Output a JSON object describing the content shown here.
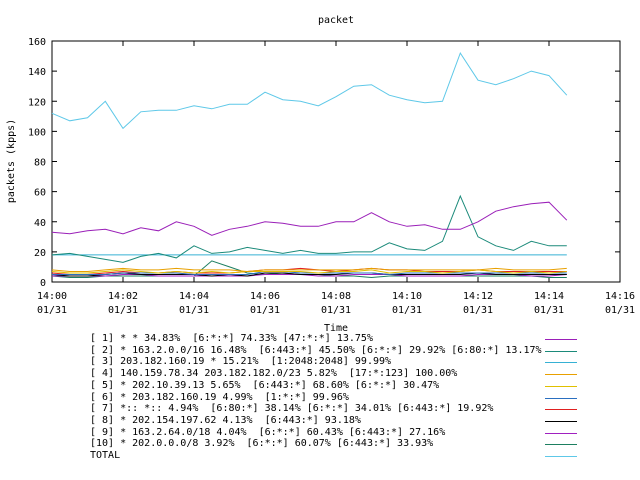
{
  "chart_data": {
    "type": "line",
    "title": "packet",
    "xlabel": "Time",
    "ylabel": "packets (kpps)",
    "ylim": [
      0,
      160
    ],
    "yticks": [
      "0",
      "20",
      "40",
      "60",
      "80",
      "100",
      "120",
      "140",
      "160"
    ],
    "xlim": [
      "14:00",
      "14:16"
    ],
    "xticks": [
      {
        "time": "14:00",
        "date": "01/31"
      },
      {
        "time": "14:02",
        "date": "01/31"
      },
      {
        "time": "14:04",
        "date": "01/31"
      },
      {
        "time": "14:06",
        "date": "01/31"
      },
      {
        "time": "14:08",
        "date": "01/31"
      },
      {
        "time": "14:10",
        "date": "01/31"
      },
      {
        "time": "14:12",
        "date": "01/31"
      },
      {
        "time": "14:14",
        "date": "01/31"
      },
      {
        "time": "14:16",
        "date": "01/31"
      }
    ],
    "x": [
      "14:00:00",
      "14:00:30",
      "14:01:00",
      "14:01:30",
      "14:02:00",
      "14:02:30",
      "14:03:00",
      "14:03:30",
      "14:04:00",
      "14:04:30",
      "14:05:00",
      "14:05:30",
      "14:06:00",
      "14:06:30",
      "14:07:00",
      "14:07:30",
      "14:08:00",
      "14:08:30",
      "14:09:00",
      "14:09:30",
      "14:10:00",
      "14:10:30",
      "14:11:00",
      "14:11:30",
      "14:12:00",
      "14:12:30",
      "14:13:00",
      "14:13:30",
      "14:14:00",
      "14:14:30"
    ],
    "grid": false,
    "legend_position": "bottom",
    "series": [
      {
        "name": "[ 1] * * 34.83%  [6:*:*] 74.33% [47:*:*] 13.75%",
        "color": "#9a1fb8",
        "values": [
          33,
          32,
          34,
          35,
          32,
          36,
          34,
          40,
          37,
          31,
          35,
          37,
          40,
          39,
          37,
          37,
          40,
          40,
          46,
          40,
          37,
          38,
          35,
          35,
          40,
          47,
          50,
          52,
          53,
          41
        ]
      },
      {
        "name": "[ 2] * 163.2.0.0/16 16.48%  [6:443:*] 45.50% [6:*:*] 29.92% [6:80:*] 13.17%",
        "color": "#1b8a7a",
        "values": [
          18,
          19,
          17,
          15,
          13,
          17,
          19,
          16,
          24,
          19,
          20,
          23,
          21,
          19,
          21,
          19,
          19,
          20,
          20,
          26,
          22,
          21,
          27,
          57,
          30,
          24,
          21,
          27,
          24,
          24
        ]
      },
      {
        "name": "[ 3] 203.182.160.19 * 15.21%  [1:2048:2048] 99.99%",
        "color": "#36b1d4",
        "values": [
          18,
          18,
          18,
          18,
          18,
          18,
          18,
          18,
          18,
          18,
          18,
          18,
          18,
          18,
          18,
          18,
          18,
          18,
          18,
          18,
          18,
          18,
          18,
          18,
          18,
          18,
          18,
          18,
          18,
          18
        ]
      },
      {
        "name": "[ 4] 140.159.78.34 203.182.182.0/23 5.82%  [17:*:123] 100.00%",
        "color": "#e8a000",
        "values": [
          8,
          7,
          7,
          8,
          9,
          8,
          8,
          9,
          8,
          8,
          8,
          7,
          8,
          8,
          8,
          8,
          8,
          8,
          9,
          8,
          8,
          8,
          8,
          8,
          8,
          9,
          8,
          8,
          8,
          9
        ]
      },
      {
        "name": "[ 5] * 202.10.39.13 5.65%  [6:443:*] 68.60% [6:*:*] 30.47%",
        "color": "#e0c000",
        "values": [
          7,
          6,
          6,
          7,
          8,
          7,
          6,
          7,
          6,
          7,
          6,
          7,
          7,
          7,
          7,
          6,
          7,
          7,
          8,
          6,
          7,
          7,
          6,
          7,
          8,
          7,
          6,
          7,
          6,
          7
        ]
      },
      {
        "name": "[ 6] * 203.182.160.19 4.99%  [1:*:*] 99.96%",
        "color": "#2a6fc0",
        "values": [
          5,
          5,
          5,
          5,
          6,
          6,
          6,
          6,
          5,
          5,
          5,
          5,
          7,
          7,
          6,
          6,
          6,
          6,
          6,
          5,
          6,
          6,
          6,
          6,
          6,
          6,
          6,
          6,
          6,
          6
        ]
      },
      {
        "name": "[ 7] *:: *:: 4.94%  [6:80:*] 38.14% [6:*:*] 34.01% [6:443:*] 19.92%",
        "color": "#e02020",
        "values": [
          6,
          5,
          5,
          6,
          7,
          6,
          6,
          7,
          6,
          6,
          6,
          7,
          8,
          8,
          9,
          8,
          7,
          8,
          9,
          8,
          8,
          7,
          7,
          7,
          8,
          7,
          7,
          7,
          7,
          7
        ]
      },
      {
        "name": "[ 8] * 202.154.197.62 4.13%  [6:443:*] 93.18%",
        "color": "#000000",
        "values": [
          5,
          4,
          4,
          5,
          6,
          5,
          5,
          5,
          5,
          4,
          5,
          4,
          6,
          6,
          5,
          5,
          5,
          6,
          6,
          5,
          5,
          5,
          5,
          5,
          6,
          5,
          5,
          5,
          5,
          5
        ]
      },
      {
        "name": "[ 9] * 163.2.64.0/18 4.04%  [6:*:*] 60.43% [6:443:*] 27.16%",
        "color": "#a020c0",
        "values": [
          4,
          4,
          4,
          4,
          5,
          5,
          4,
          4,
          4,
          4,
          4,
          4,
          5,
          5,
          5,
          4,
          4,
          5,
          5,
          5,
          4,
          4,
          4,
          4,
          5,
          5,
          5,
          4,
          4,
          5
        ]
      },
      {
        "name": "[10] * 202.0.0.0/8 3.92%  [6:*:*] 60.07% [6:443:*] 33.93%",
        "color": "#1d7f60",
        "values": [
          4,
          3,
          3,
          4,
          4,
          4,
          4,
          4,
          4,
          14,
          10,
          6,
          5,
          6,
          5,
          5,
          4,
          4,
          3,
          4,
          4,
          4,
          4,
          4,
          4,
          4,
          4,
          4,
          3,
          3
        ]
      },
      {
        "name": "TOTAL",
        "color": "#5ec8e8",
        "values": [
          112,
          107,
          109,
          120,
          102,
          113,
          114,
          114,
          117,
          115,
          118,
          118,
          126,
          121,
          120,
          117,
          123,
          130,
          131,
          124,
          121,
          119,
          120,
          152,
          134,
          131,
          135,
          140,
          137,
          124
        ]
      }
    ]
  }
}
